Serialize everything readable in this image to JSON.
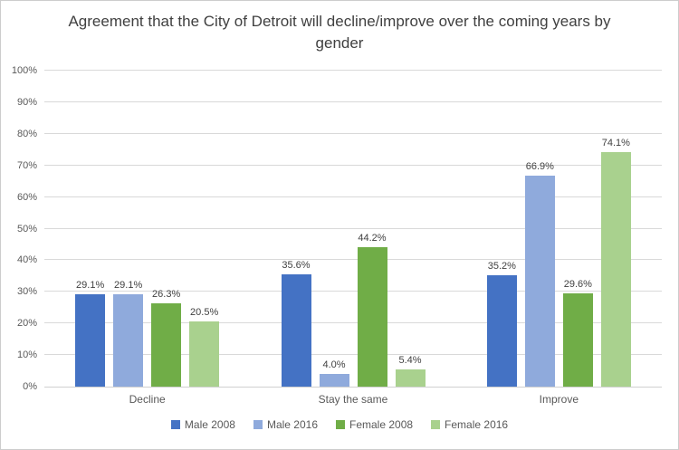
{
  "chart_data": {
    "type": "bar",
    "title": "Agreement that the City of Detroit will decline/improve over the coming years by gender",
    "categories": [
      "Decline",
      "Stay the same",
      "Improve"
    ],
    "series": [
      {
        "name": "Male 2008",
        "color": "#4472C4",
        "values": [
          29.1,
          35.6,
          35.2
        ]
      },
      {
        "name": "Male 2016",
        "color": "#8FAADC",
        "values": [
          29.1,
          4.0,
          66.9
        ]
      },
      {
        "name": "Female 2008",
        "color": "#70AD47",
        "values": [
          26.3,
          44.2,
          29.6
        ]
      },
      {
        "name": "Female 2016",
        "color": "#A9D18E",
        "values": [
          20.5,
          5.4,
          74.1
        ]
      }
    ],
    "ylim": [
      0,
      100
    ],
    "ytick_step": 10,
    "ytick_suffix": "%",
    "ytick_labels": [
      "0%",
      "10%",
      "20%",
      "30%",
      "40%",
      "50%",
      "60%",
      "70%",
      "80%",
      "90%",
      "100%"
    ],
    "data_label_decimals": 1,
    "data_label_suffix": "%",
    "grid": true,
    "legend_position": "bottom",
    "style": {
      "grid_color": "#D9D9D9",
      "axis_line_color": "#D0D0D0",
      "tick_text_color": "#595959",
      "category_text_color": "#595959",
      "legend_text_color": "#595959",
      "data_label_color": "#404040",
      "title_color": "#404040",
      "frame_border_color": "#CDCDCD",
      "background": "#FFFFFF"
    }
  }
}
